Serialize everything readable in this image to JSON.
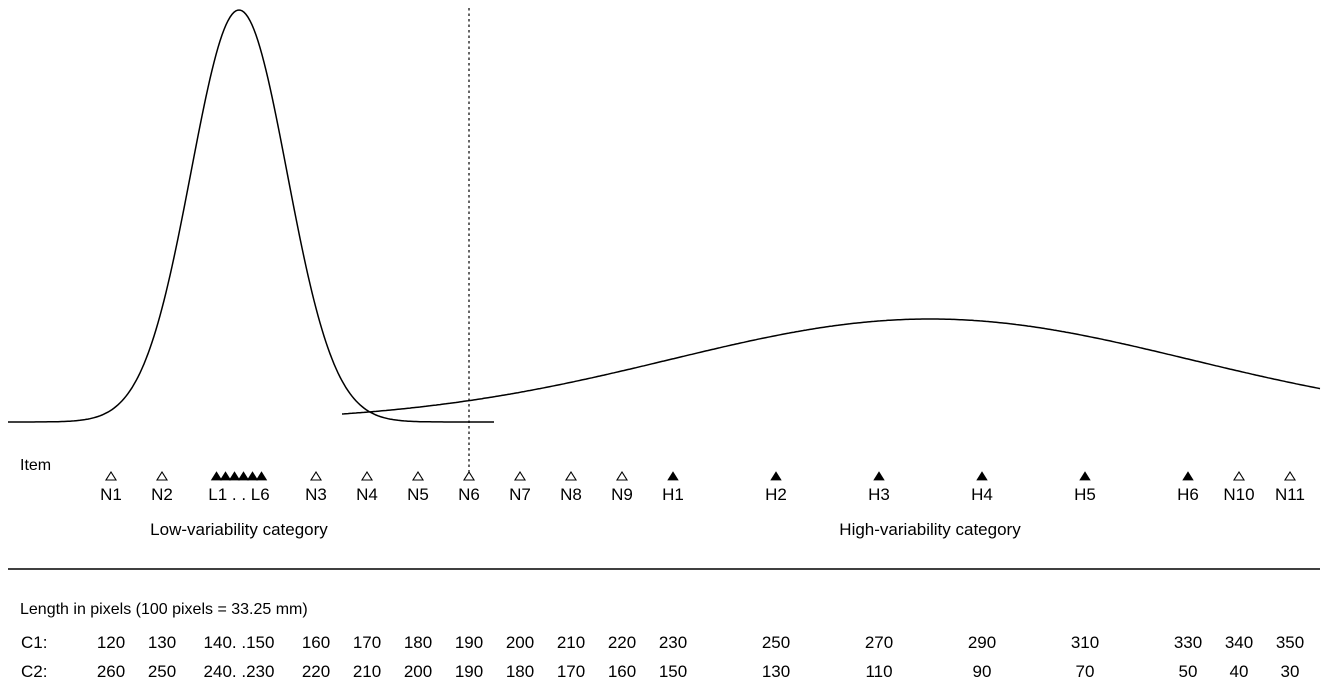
{
  "distributions": {
    "low": {
      "name": "Low-variability category"
    },
    "high": {
      "name": "High-variability category"
    }
  },
  "items_title": "Item",
  "items": [
    {
      "label": "N1",
      "c1": "120",
      "c2": "260",
      "filled": false
    },
    {
      "label": "N2",
      "c1": "130",
      "c2": "250",
      "filled": false
    },
    {
      "label": "L1 . . L6",
      "c1": "140. .150",
      "c2": "240. .230",
      "filled": true,
      "count": 6
    },
    {
      "label": "N3",
      "c1": "160",
      "c2": "220",
      "filled": false
    },
    {
      "label": "N4",
      "c1": "170",
      "c2": "210",
      "filled": false
    },
    {
      "label": "N5",
      "c1": "180",
      "c2": "200",
      "filled": false
    },
    {
      "label": "N6",
      "c1": "190",
      "c2": "190",
      "filled": false
    },
    {
      "label": "N7",
      "c1": "200",
      "c2": "180",
      "filled": false
    },
    {
      "label": "N8",
      "c1": "210",
      "c2": "170",
      "filled": false
    },
    {
      "label": "N9",
      "c1": "220",
      "c2": "160",
      "filled": false
    },
    {
      "label": "H1",
      "c1": "230",
      "c2": "150",
      "filled": true
    },
    {
      "label": "H2",
      "c1": "250",
      "c2": "130",
      "filled": true
    },
    {
      "label": "H3",
      "c1": "270",
      "c2": "110",
      "filled": true
    },
    {
      "label": "H4",
      "c1": "290",
      "c2": "90",
      "filled": true
    },
    {
      "label": "H5",
      "c1": "310",
      "c2": "70",
      "filled": true
    },
    {
      "label": "H6",
      "c1": "330",
      "c2": "50",
      "filled": true
    },
    {
      "label": "N10",
      "c1": "340",
      "c2": "40",
      "filled": false
    },
    {
      "label": "N11",
      "c1": "350",
      "c2": "30",
      "filled": false
    }
  ],
  "length_title": "Length in pixels (100 pixels = 33.25 mm)",
  "rows": [
    {
      "label": "C1:"
    },
    {
      "label": "C2:"
    }
  ]
}
